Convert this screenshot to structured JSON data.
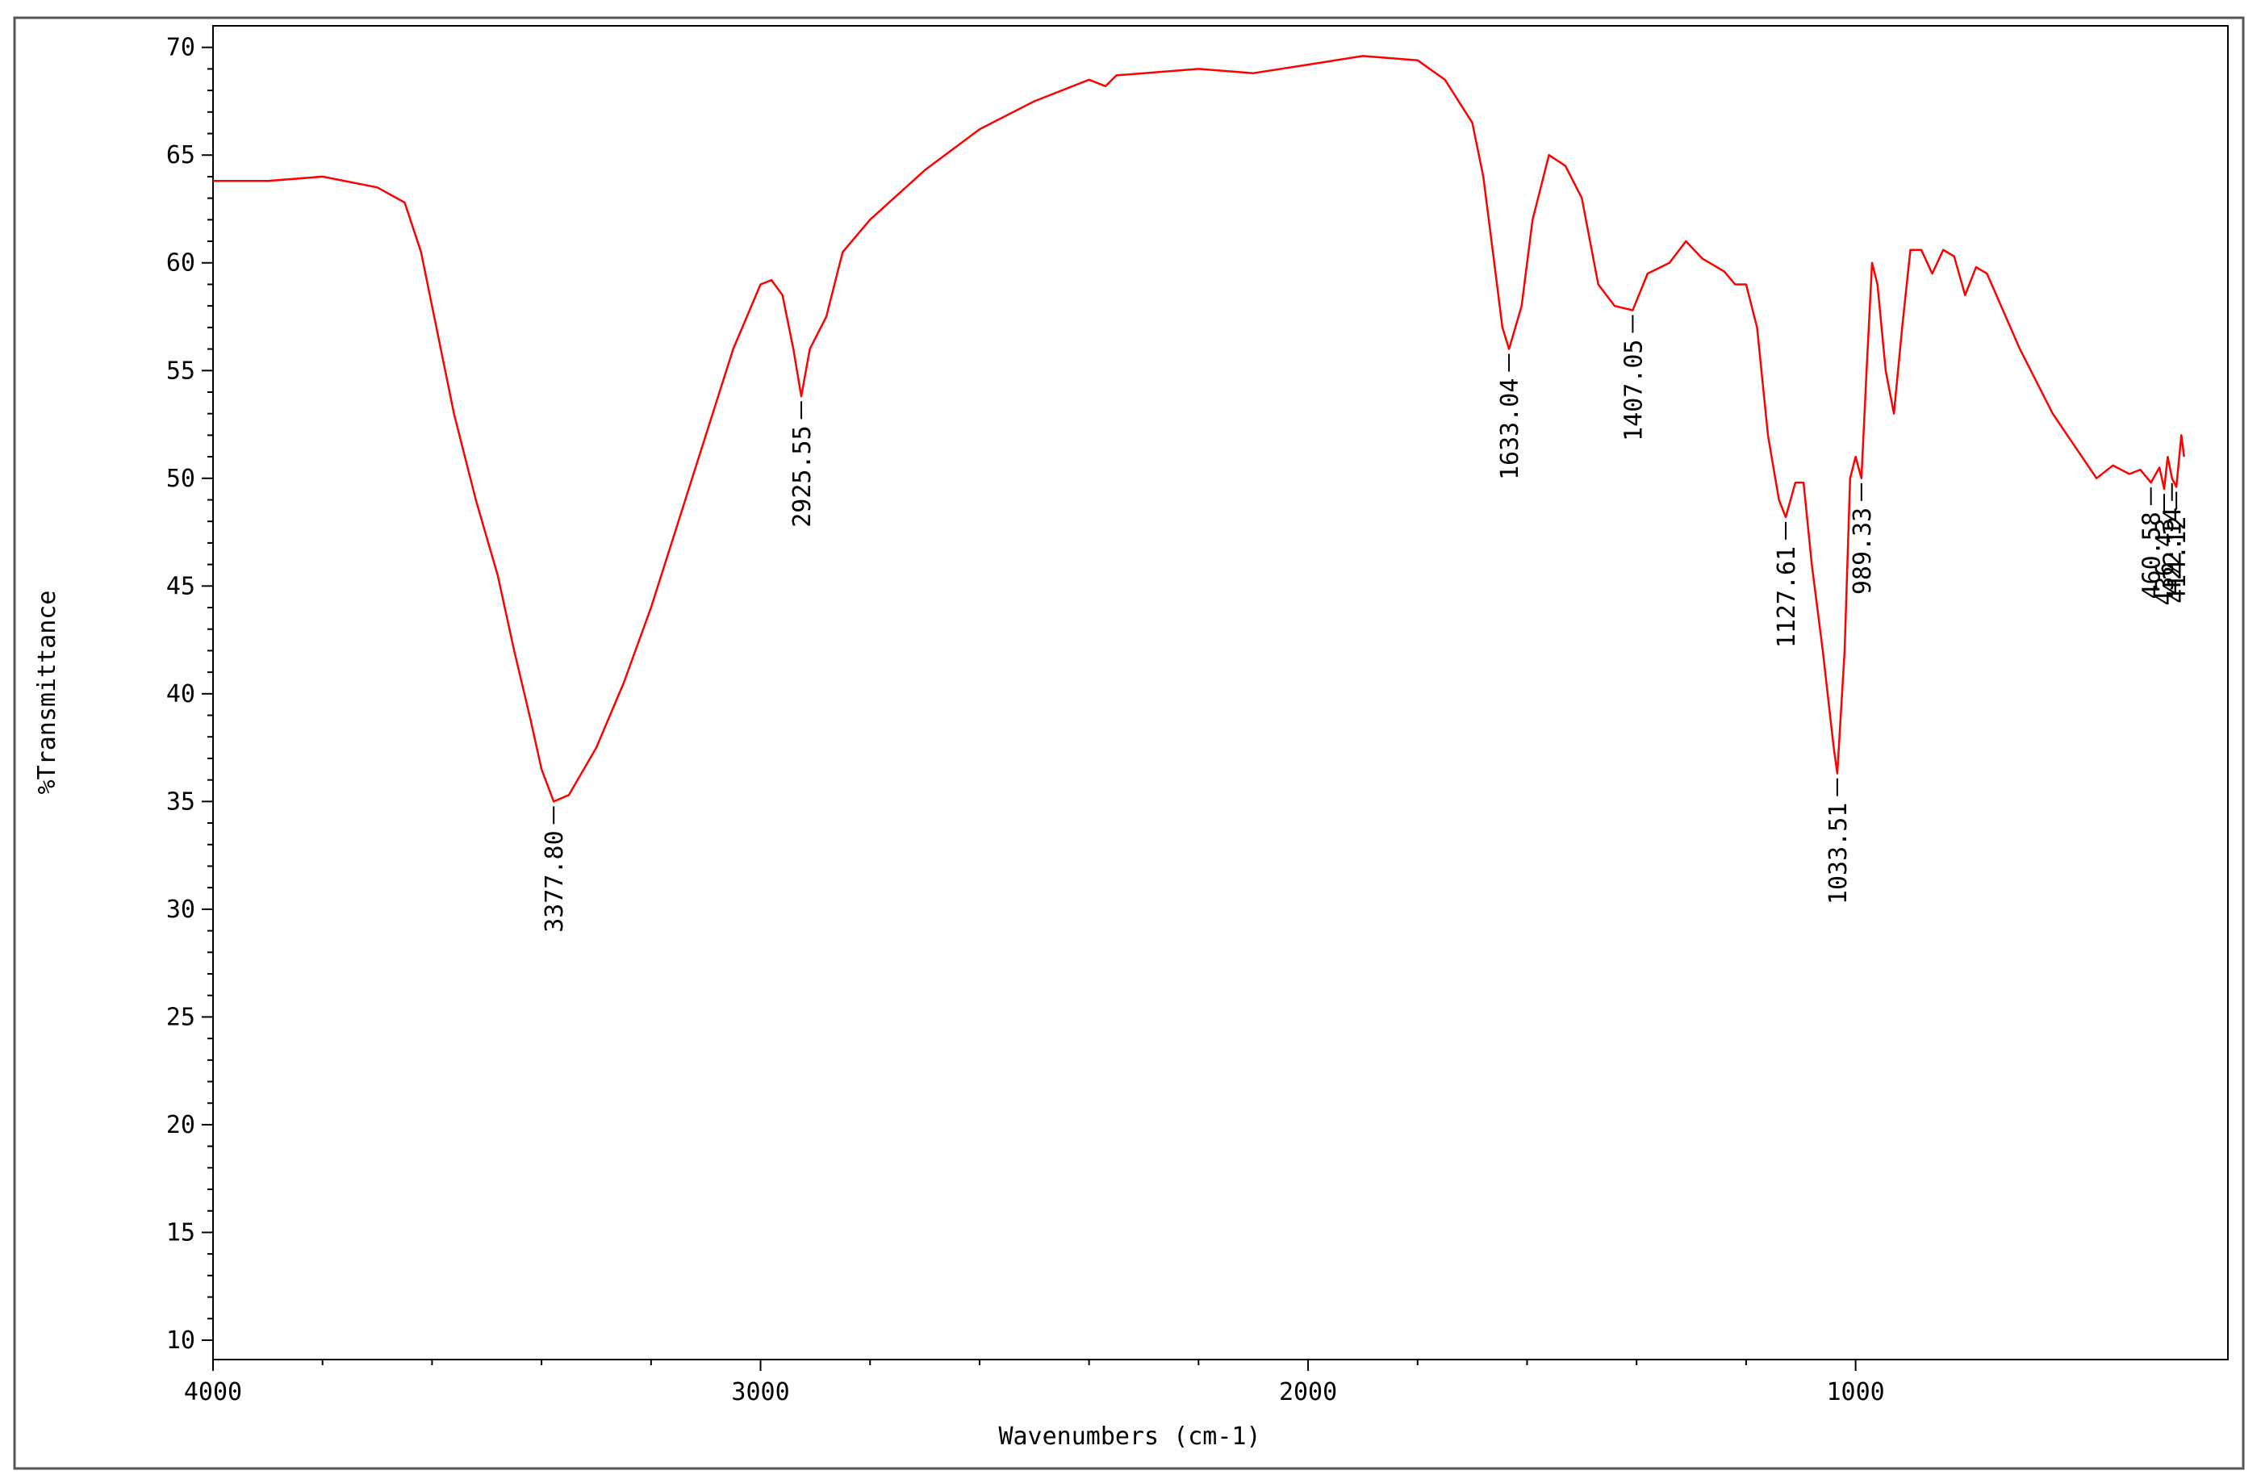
{
  "chart_data": {
    "type": "line",
    "xlabel": "Wavenumbers (cm-1)",
    "ylabel": "%Transmittance",
    "xlim": [
      4000,
      320
    ],
    "ylim": [
      9.1,
      71
    ],
    "xticks": [
      4000,
      3000,
      2000,
      1000
    ],
    "yticks": [
      10,
      15,
      20,
      25,
      30,
      35,
      40,
      45,
      50,
      55,
      60,
      65,
      70
    ],
    "color": "#ff0000",
    "x": [
      4000,
      3900,
      3800,
      3700,
      3650,
      3620,
      3600,
      3560,
      3520,
      3480,
      3450,
      3420,
      3400,
      3377.8,
      3350,
      3300,
      3250,
      3200,
      3150,
      3100,
      3050,
      3000,
      2980,
      2960,
      2940,
      2925.55,
      2910,
      2880,
      2850,
      2800,
      2700,
      2600,
      2500,
      2400,
      2370,
      2350,
      2200,
      2100,
      2000,
      1900,
      1800,
      1750,
      1700,
      1680,
      1660,
      1645,
      1633.04,
      1610,
      1590,
      1560,
      1530,
      1500,
      1470,
      1440,
      1407.05,
      1380,
      1340,
      1310,
      1280,
      1240,
      1220,
      1200,
      1180,
      1160,
      1140,
      1127.61,
      1110,
      1095,
      1080,
      1060,
      1040,
      1033.51,
      1020,
      1010,
      1000,
      989.33,
      980,
      970,
      960,
      945,
      930,
      915,
      900,
      880,
      860,
      840,
      820,
      800,
      780,
      760,
      700,
      640,
      600,
      560,
      530,
      500,
      480,
      460.58,
      445,
      436.43,
      430,
      422.14,
      414.12,
      405,
      400
    ],
    "values": [
      63.8,
      63.8,
      64,
      63.5,
      62.8,
      60.5,
      58,
      53,
      49,
      45.5,
      42,
      38.8,
      36.5,
      35,
      35.3,
      37.5,
      40.5,
      44,
      48,
      52,
      56,
      59,
      59.2,
      58.5,
      56,
      53.8,
      56,
      57.5,
      60.5,
      62,
      64.3,
      66.2,
      67.5,
      68.5,
      68.2,
      68.7,
      69,
      68.8,
      69.2,
      69.6,
      69.4,
      68.5,
      66.5,
      64,
      60,
      57,
      56,
      58,
      62,
      65,
      64.5,
      63,
      59,
      58,
      57.8,
      59.5,
      60,
      61,
      60.2,
      59.6,
      59,
      59,
      57,
      52,
      49,
      48.2,
      49.8,
      49.8,
      46,
      42,
      37.5,
      36.3,
      42,
      50,
      51,
      50,
      55,
      60,
      59,
      55,
      53,
      57,
      60.6,
      60.6,
      59.5,
      60.6,
      60.3,
      58.5,
      59.8,
      59.5,
      56,
      53,
      51.5,
      50,
      50.6,
      50.2,
      50.4,
      49.8,
      50.5,
      49.5,
      51,
      50,
      49.6,
      52,
      51
    ],
    "peaks": [
      {
        "value": 3377.8,
        "label": "3377.80"
      },
      {
        "value": 2925.55,
        "label": "2925.55"
      },
      {
        "value": 1633.04,
        "label": "1633.04"
      },
      {
        "value": 1407.05,
        "label": "1407.05"
      },
      {
        "value": 1127.61,
        "label": "1127.61"
      },
      {
        "value": 1033.51,
        "label": "1033.51"
      },
      {
        "value": 989.33,
        "label": "989.33"
      },
      {
        "value": 460.58,
        "label": "460.58"
      },
      {
        "value": 436.43,
        "label": "436.43"
      },
      {
        "value": 422.14,
        "label": "422.14"
      },
      {
        "value": 414.12,
        "label": "414.12"
      }
    ]
  }
}
